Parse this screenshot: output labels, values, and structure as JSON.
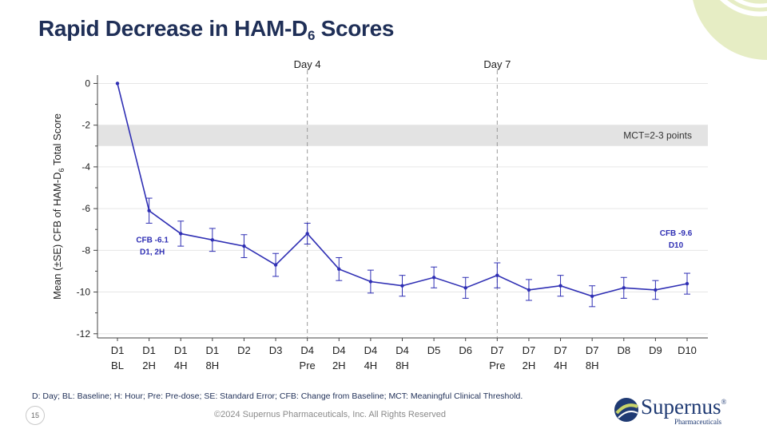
{
  "title": {
    "main": "Rapid Decrease in HAM-D",
    "subscript": "6",
    "suffix": " Scores"
  },
  "footnote": "D: Day; BL: Baseline; H: Hour; Pre: Pre-dose; SE: Standard Error; CFB: Change from Baseline; MCT: Meaningful Clinical Threshold.",
  "page_number": "15",
  "copyright": "©2024 Supernus Pharmaceuticals, Inc. All Rights Reserved",
  "logo": {
    "name": "Supernus",
    "registered": "®",
    "sub": "Pharmaceuticals"
  },
  "colors": {
    "title": "#1f2f57",
    "series": "#2f2fb4",
    "band": "#e3e3e3",
    "deco": "#e3ebbd"
  },
  "chart_data": {
    "type": "line",
    "ylabel_main": "Mean (±SE) CFB of HAM-D",
    "ylabel_sub": "6",
    "ylabel_suffix": " Total Score",
    "ylim": [
      -12.2,
      0.4
    ],
    "yticks": [
      0,
      -2,
      -4,
      -6,
      -8,
      -10,
      -12
    ],
    "categories": [
      [
        "D1",
        "BL"
      ],
      [
        "D1",
        "2H"
      ],
      [
        "D1",
        "4H"
      ],
      [
        "D1",
        "8H"
      ],
      [
        "D2",
        ""
      ],
      [
        "D3",
        ""
      ],
      [
        "D4",
        "Pre"
      ],
      [
        "D4",
        "2H"
      ],
      [
        "D4",
        "4H"
      ],
      [
        "D4",
        "8H"
      ],
      [
        "D5",
        ""
      ],
      [
        "D6",
        ""
      ],
      [
        "D7",
        "Pre"
      ],
      [
        "D7",
        "2H"
      ],
      [
        "D7",
        "4H"
      ],
      [
        "D7",
        "8H"
      ],
      [
        "D8",
        ""
      ],
      [
        "D9",
        ""
      ],
      [
        "D10",
        ""
      ]
    ],
    "series": [
      {
        "values": [
          0,
          -6.1,
          -7.2,
          -7.5,
          -7.8,
          -8.7,
          -7.2,
          -8.9,
          -9.5,
          -9.7,
          -9.3,
          -9.8,
          -9.2,
          -9.9,
          -9.7,
          -10.2,
          -9.8,
          -9.9,
          -9.6
        ],
        "se": [
          0.05,
          0.6,
          0.6,
          0.55,
          0.55,
          0.55,
          0.5,
          0.55,
          0.55,
          0.5,
          0.5,
          0.5,
          0.6,
          0.5,
          0.5,
          0.5,
          0.5,
          0.45,
          0.5
        ]
      }
    ],
    "band": {
      "from": -2,
      "to": -3,
      "label": "MCT=2-3 points"
    },
    "vlines": [
      {
        "at_index": 6,
        "label": "Day 4"
      },
      {
        "at_index": 12,
        "label": "Day 7"
      }
    ],
    "annotations": [
      {
        "at_index": 1,
        "lines": [
          "CFB  -6.1",
          "D1, 2H"
        ]
      },
      {
        "at_index": 18,
        "lines": [
          "CFB -9.6",
          "D10"
        ]
      }
    ],
    "grid": true
  }
}
